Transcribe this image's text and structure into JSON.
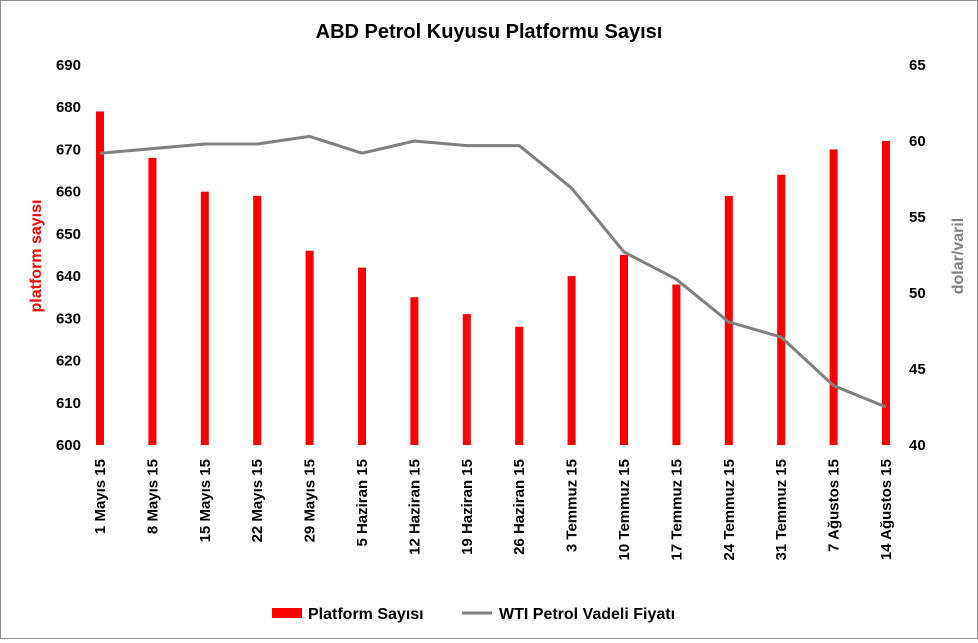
{
  "chart_data": {
    "type": "bar+line",
    "title": "ABD Petrol Kuyusu Platformu Sayısı",
    "categories": [
      "1 Mayıs 15",
      "8 Mayıs 15",
      "15 Mayıs 15",
      "22 Mayıs 15",
      "29 Mayıs 15",
      "5 Haziran 15",
      "12 Haziran 15",
      "19 Haziran 15",
      "26 Haziran 15",
      "3 Temmuz 15",
      "10 Temmuz 15",
      "17 Temmuz 15",
      "24 Temmuz 15",
      "31 Temmuz 15",
      "7 Ağustos 15",
      "14 Ağustos 15"
    ],
    "series": [
      {
        "name": "Platform Sayısı",
        "kind": "bar",
        "axis": "left",
        "color": "#ff0000",
        "values": [
          679,
          668,
          660,
          659,
          646,
          642,
          635,
          631,
          628,
          640,
          645,
          638,
          659,
          664,
          670,
          672
        ]
      },
      {
        "name": "WTI Petrol Vadeli Fiyatı",
        "kind": "line",
        "axis": "right",
        "color": "#808080",
        "values": [
          59.2,
          59.5,
          59.8,
          59.8,
          60.3,
          59.2,
          60.0,
          59.7,
          59.7,
          56.9,
          52.7,
          50.9,
          48.1,
          47.1,
          43.9,
          42.5
        ]
      }
    ],
    "ylabel_left": "platform sayısı",
    "ylabel_right": "dolar/varil",
    "ylim_left": [
      600,
      690
    ],
    "ylim_right": [
      40,
      65
    ],
    "yticks_left": [
      "600",
      "610",
      "620",
      "630",
      "640",
      "650",
      "660",
      "670",
      "680",
      "690"
    ],
    "yticks_right": [
      "40",
      "45",
      "50",
      "55",
      "60",
      "65"
    ],
    "grid": false,
    "legend_position": "bottom"
  }
}
